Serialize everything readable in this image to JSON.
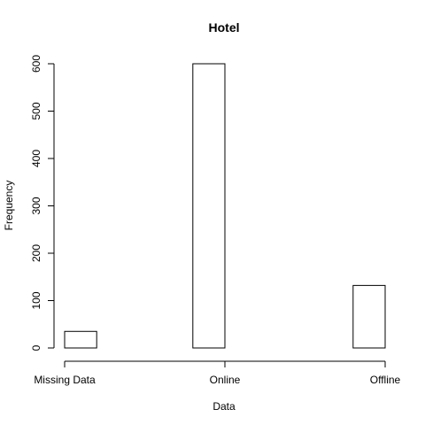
{
  "chart_data": {
    "type": "bar",
    "title": "Hotel",
    "xlabel": "Data",
    "ylabel": "Frequency",
    "categories": [
      "Missing Data",
      "Online",
      "Offline"
    ],
    "values": [
      35,
      600,
      132
    ],
    "yticks": [
      0,
      100,
      200,
      300,
      400,
      500,
      600
    ],
    "ylim": [
      0,
      600
    ],
    "grid": false,
    "colors": {
      "bar_fill": "#ffffff",
      "bar_stroke": "#000000",
      "axis": "#000000",
      "text": "#000000"
    }
  }
}
